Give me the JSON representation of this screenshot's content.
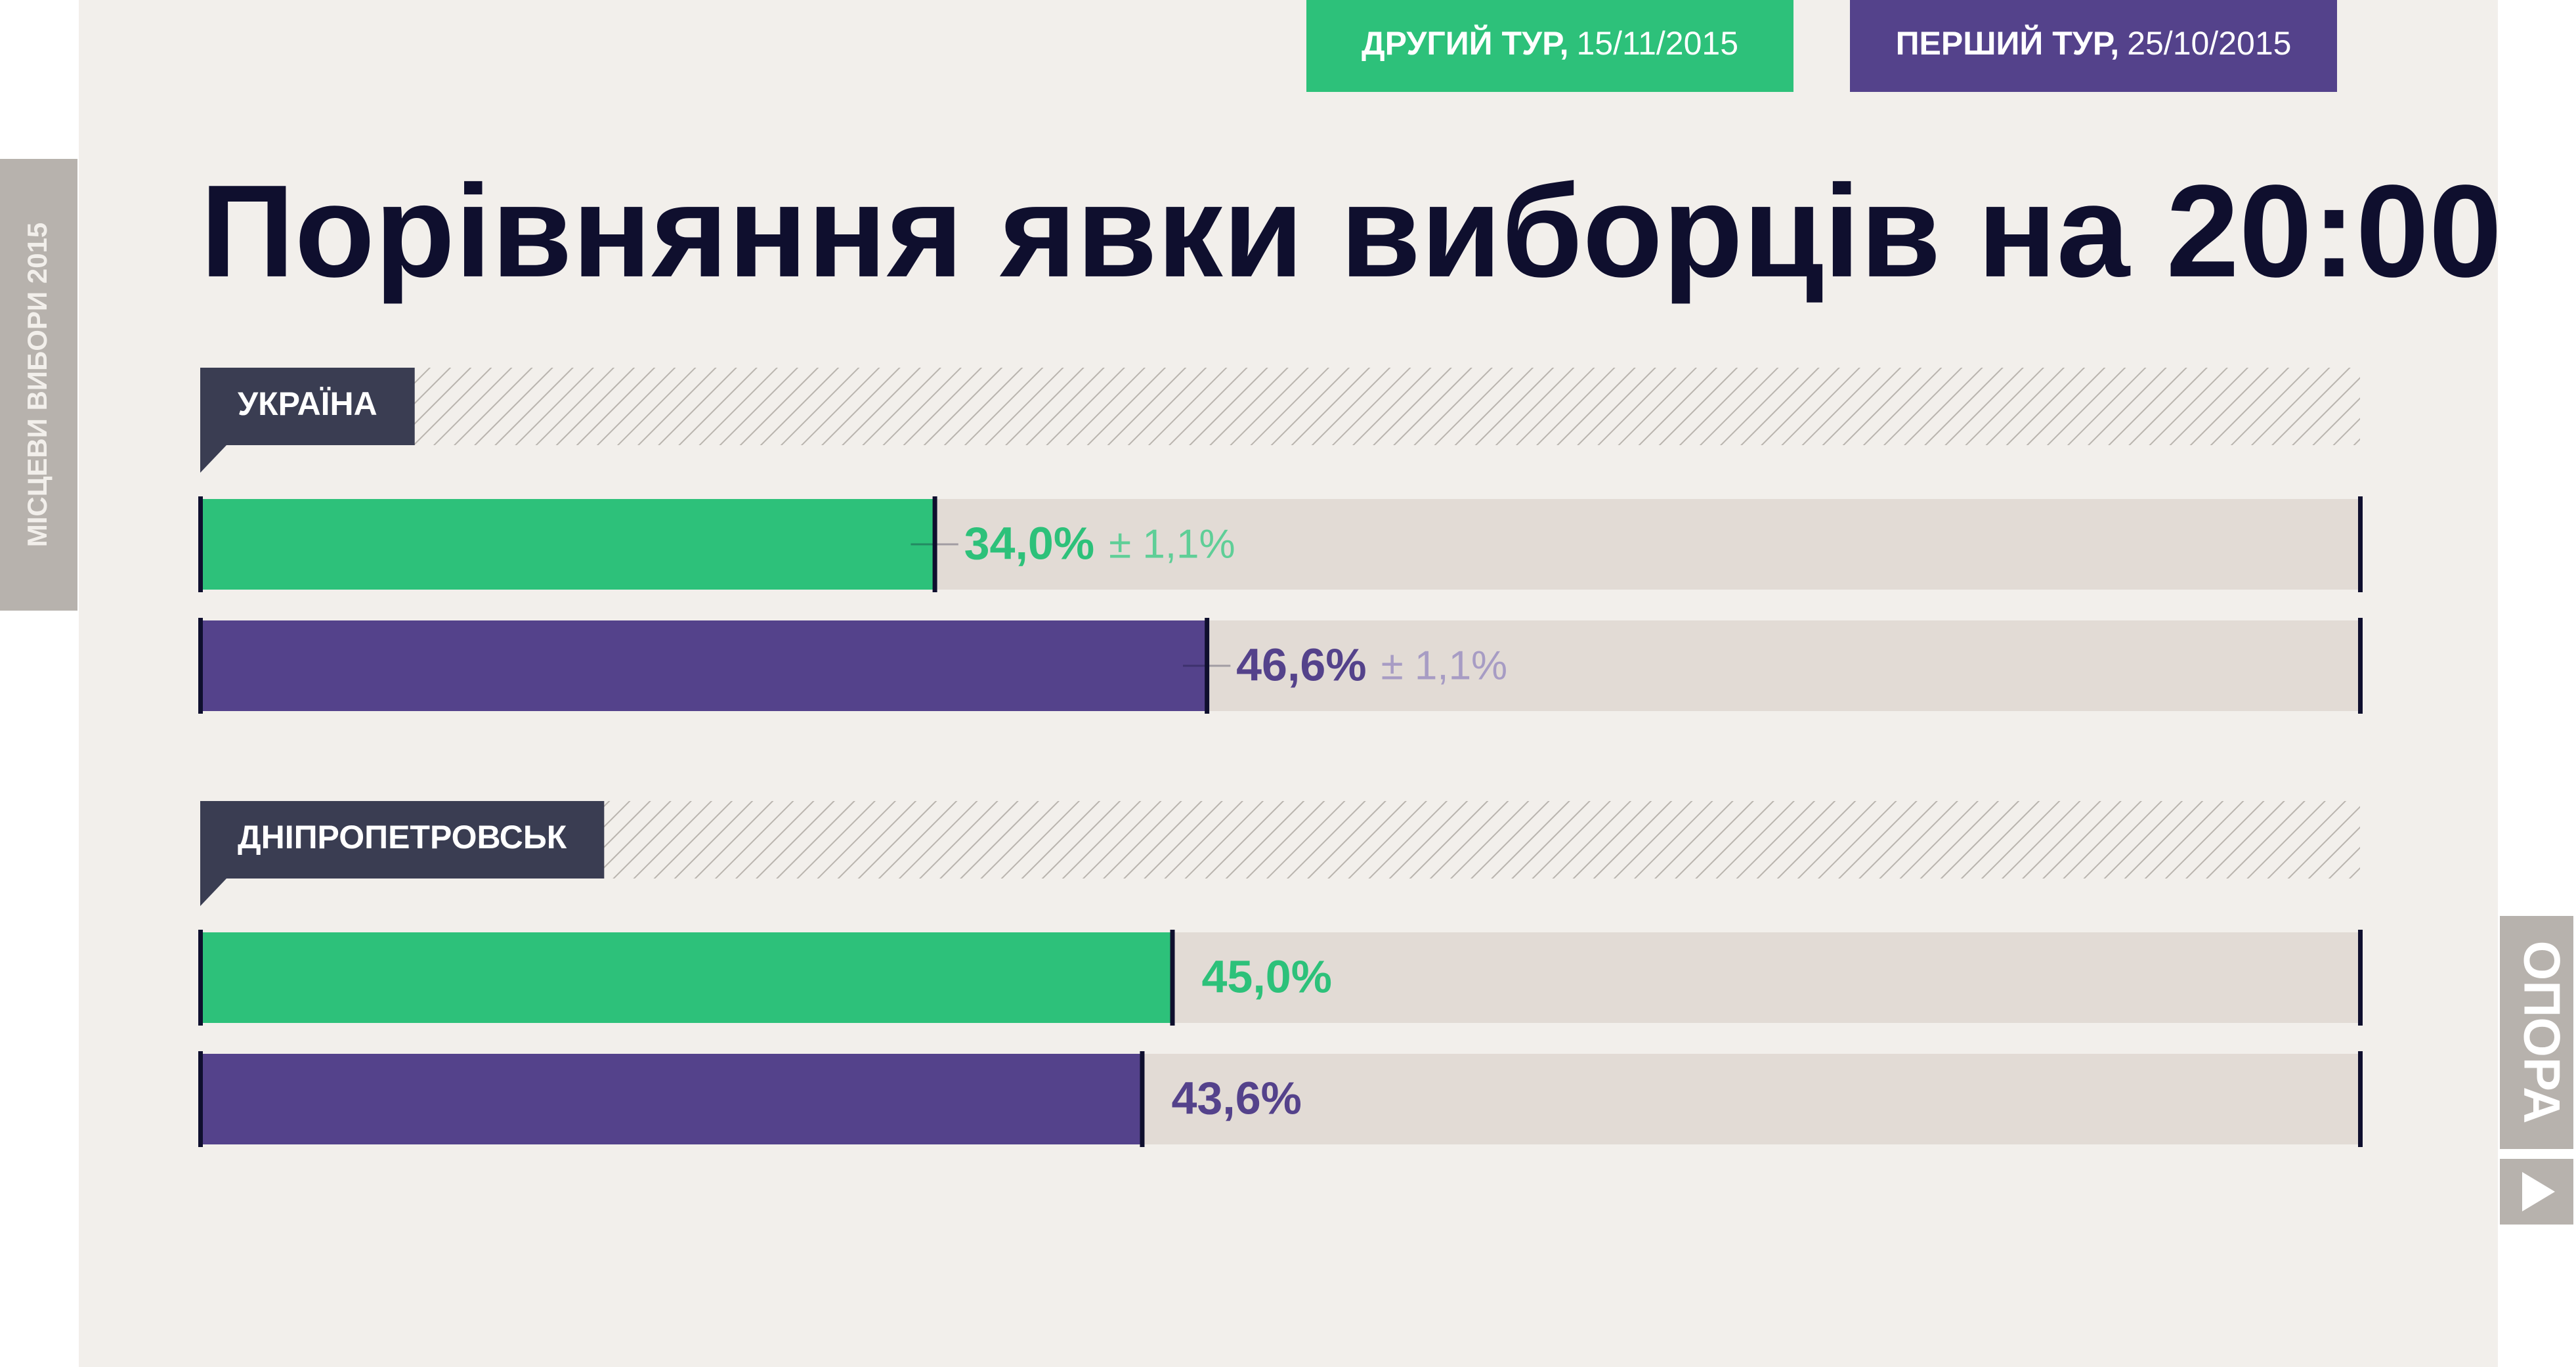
{
  "side_label": "МІСЦЕВИ ВИБОРИ 2015",
  "brand": "ОПОРА",
  "chart_data": {
    "type": "bar",
    "orientation": "horizontal",
    "title": "Порівняння явки виборців на 20:00",
    "categories": [
      "УКРАЇНА",
      "ДНІПРОПЕТРОВСЬК"
    ],
    "xlim": [
      0,
      100
    ],
    "series": [
      {
        "name": "ДРУГИЙ ТУР,",
        "date": "15/11/2015",
        "color": "#2dc17a",
        "error_color": "#5fce97",
        "values": [
          34.0,
          45.0
        ],
        "value_labels": [
          "34,0%",
          "45,0%"
        ],
        "errors": [
          1.1,
          null
        ],
        "error_labels": [
          "± 1,1%",
          null
        ]
      },
      {
        "name": "ПЕРШИЙ ТУР,",
        "date": "25/10/2015",
        "color": "#54428b",
        "error_color": "#a79cc4",
        "values": [
          46.6,
          43.6
        ],
        "value_labels": [
          "46,6%",
          "43,6%"
        ],
        "errors": [
          1.1,
          null
        ],
        "error_labels": [
          "± 1,1%",
          null
        ]
      }
    ]
  }
}
